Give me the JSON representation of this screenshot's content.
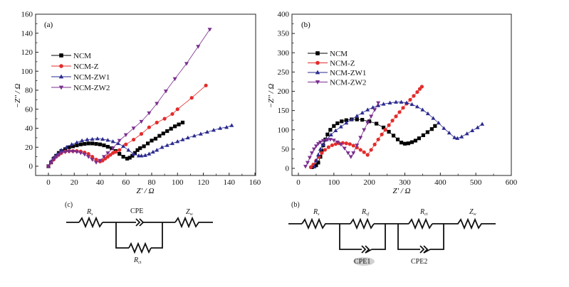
{
  "chart_data": [
    {
      "type": "scatter",
      "panel_label": "(a)",
      "xlabel": "Z' / Ω",
      "ylabel": "−Z'' / Ω",
      "xlim": [
        -10,
        160
      ],
      "ylim": [
        -10,
        160
      ],
      "xticks": [
        0,
        20,
        40,
        60,
        80,
        100,
        120,
        140,
        160
      ],
      "yticks": [
        0,
        20,
        40,
        60,
        80,
        100,
        120,
        140,
        160
      ],
      "legend": "upper-left",
      "series": [
        {
          "name": "NCM",
          "color": "#000000",
          "marker": "square",
          "x": [
            0,
            2,
            4,
            6,
            8,
            10,
            13,
            16,
            19,
            22,
            25,
            28,
            31,
            34,
            37,
            40,
            43,
            46,
            49,
            52,
            55,
            58,
            61,
            63,
            65,
            67,
            69,
            71,
            74,
            77,
            80,
            83,
            86,
            89,
            92,
            95,
            98,
            101,
            104
          ],
          "y": [
            0,
            4,
            8,
            11,
            14,
            16,
            18,
            20,
            21,
            22,
            23,
            23.5,
            24,
            24,
            23.5,
            23,
            22,
            20.5,
            19,
            16,
            13,
            10,
            8,
            9,
            11,
            14,
            17,
            19,
            21,
            24,
            27,
            29,
            32,
            34.5,
            37,
            39.5,
            42,
            44,
            46
          ]
        },
        {
          "name": "NCM-Z",
          "color": "#e32c2c",
          "marker": "circle",
          "x": [
            0,
            2,
            4,
            6,
            8,
            10,
            13,
            16,
            19,
            22,
            25,
            28,
            31,
            34,
            37,
            40,
            42,
            44,
            46,
            48,
            50,
            52,
            55,
            60,
            66,
            72,
            78,
            84,
            90,
            96,
            100,
            111,
            122
          ],
          "y": [
            0,
            4,
            7,
            10,
            12,
            14,
            15.5,
            16,
            16,
            16,
            15.5,
            14.5,
            13,
            10,
            7,
            5,
            6,
            8,
            10,
            12,
            14,
            15,
            17,
            23,
            28,
            34,
            41,
            46,
            50,
            55,
            60,
            72,
            85
          ]
        },
        {
          "name": "NCM-ZW1",
          "color": "#2b2a8f",
          "marker": "triangle-up",
          "x": [
            0,
            2,
            4,
            7,
            10,
            14,
            18,
            22,
            26,
            30,
            34,
            38,
            42,
            46,
            50,
            54,
            58,
            62,
            66,
            70,
            72,
            75,
            78,
            81,
            84,
            88,
            92,
            96,
            100,
            104,
            108,
            113,
            118,
            123,
            128,
            133,
            138,
            142
          ],
          "y": [
            0,
            5,
            9,
            13,
            17,
            20,
            23,
            25,
            27,
            28,
            28.5,
            29,
            28.5,
            27.5,
            26,
            24,
            21,
            17,
            13,
            11,
            11,
            11.5,
            13,
            15,
            17,
            20,
            22,
            24,
            26,
            28,
            30,
            32,
            34,
            36,
            38,
            40,
            41,
            43
          ],
          "color_note": "navy"
        },
        {
          "name": "NCM-ZW2",
          "color": "#7a2d8e",
          "marker": "triangle-down",
          "x": [
            0,
            2,
            4,
            6,
            8,
            10,
            13,
            16,
            19,
            22,
            25,
            28,
            31,
            34,
            37,
            40,
            43,
            46,
            50,
            55,
            60,
            66,
            72,
            78,
            84,
            91,
            98,
            107,
            116,
            125
          ],
          "y": [
            0,
            4,
            7,
            10,
            12,
            14,
            15,
            15.5,
            15.5,
            15,
            14,
            12.5,
            10,
            7,
            4,
            6,
            10,
            14,
            19,
            27,
            33,
            40,
            47,
            56,
            66,
            79,
            92,
            108,
            126,
            144
          ]
        }
      ]
    },
    {
      "type": "scatter",
      "panel_label": "(b)",
      "xlabel": "Z' / Ω",
      "ylabel": "−Z'' / Ω",
      "xlim": [
        -20,
        600
      ],
      "ylim": [
        -20,
        400
      ],
      "xticks": [
        0,
        100,
        200,
        300,
        400,
        500,
        600
      ],
      "yticks": [
        0,
        50,
        100,
        150,
        200,
        250,
        300,
        350,
        400
      ],
      "legend": "upper-left",
      "series": [
        {
          "name": "NCM",
          "color": "#000000",
          "marker": "square",
          "x": [
            38,
            44,
            50,
            56,
            62,
            66,
            70,
            76,
            82,
            90,
            100,
            110,
            122,
            135,
            150,
            165,
            180,
            200,
            220,
            240,
            255,
            268,
            280,
            290,
            300,
            310,
            320,
            330,
            340,
            352,
            364,
            376,
            385
          ],
          "y": [
            3,
            5,
            8,
            15,
            30,
            45,
            60,
            75,
            88,
            100,
            110,
            117,
            122,
            125,
            127,
            127,
            126,
            122,
            116,
            106,
            95,
            85,
            75,
            67,
            64,
            65,
            68,
            72,
            78,
            86,
            94,
            102,
            110
          ]
        },
        {
          "name": "NCM-Z",
          "color": "#e32c2c",
          "marker": "circle",
          "x": [
            35,
            42,
            50,
            58,
            66,
            75,
            85,
            95,
            105,
            115,
            125,
            135,
            145,
            155,
            165,
            175,
            185,
            195,
            205,
            215,
            225,
            235,
            245,
            255,
            265,
            275,
            285,
            295,
            305,
            315,
            325,
            335,
            342,
            348
          ],
          "y": [
            3,
            10,
            20,
            30,
            40,
            48,
            55,
            60,
            63,
            65,
            66,
            65,
            63,
            59,
            54,
            48,
            42,
            35,
            48,
            62,
            75,
            88,
            100,
            112,
            124,
            135,
            146,
            157,
            168,
            178,
            188,
            198,
            206,
            212
          ]
        },
        {
          "name": "NCM-ZW1",
          "color": "#2b2a8f",
          "marker": "triangle-up",
          "x": [
            45,
            50,
            56,
            62,
            70,
            80,
            92,
            105,
            120,
            135,
            150,
            165,
            180,
            195,
            210,
            225,
            240,
            258,
            275,
            290,
            305,
            320,
            335,
            350,
            365,
            380,
            395,
            410,
            425,
            440,
            448,
            460,
            475,
            490,
            505,
            518
          ],
          "y": [
            5,
            20,
            35,
            50,
            62,
            75,
            87,
            98,
            108,
            118,
            127,
            136,
            144,
            152,
            158,
            163,
            167,
            170,
            172,
            172,
            170,
            166,
            160,
            152,
            142,
            130,
            118,
            104,
            92,
            80,
            78,
            82,
            90,
            98,
            106,
            115
          ]
        },
        {
          "name": "NCM-ZW2",
          "color": "#7a2d8e",
          "marker": "triangle-down",
          "x": [
            20,
            26,
            32,
            38,
            44,
            50,
            56,
            62,
            70,
            80,
            90,
            100,
            110,
            120,
            130,
            140,
            148,
            155,
            165,
            175,
            185,
            195,
            205,
            215,
            225
          ],
          "y": [
            5,
            15,
            28,
            40,
            50,
            58,
            64,
            68,
            72,
            74,
            75,
            73,
            68,
            62,
            52,
            40,
            30,
            40,
            60,
            80,
            100,
            118,
            135,
            152,
            170
          ]
        }
      ]
    }
  ],
  "circuits": {
    "c": {
      "label": "(c)",
      "components": {
        "rs": "R",
        "rs_sub": "s",
        "cpe": "CPE",
        "zw": "Z",
        "zw_sub": "w",
        "rct": "R",
        "rct_sub": "ct"
      }
    },
    "b": {
      "label": "(b)",
      "components": {
        "rs": "R",
        "rs_sub": "s",
        "rsf": "R",
        "rsf_sub": "sf",
        "rct": "R",
        "rct_sub": "ct",
        "zw": "Z",
        "zw_sub": "w",
        "cpe1": "CPE1",
        "cpe2": "CPE2"
      }
    }
  }
}
